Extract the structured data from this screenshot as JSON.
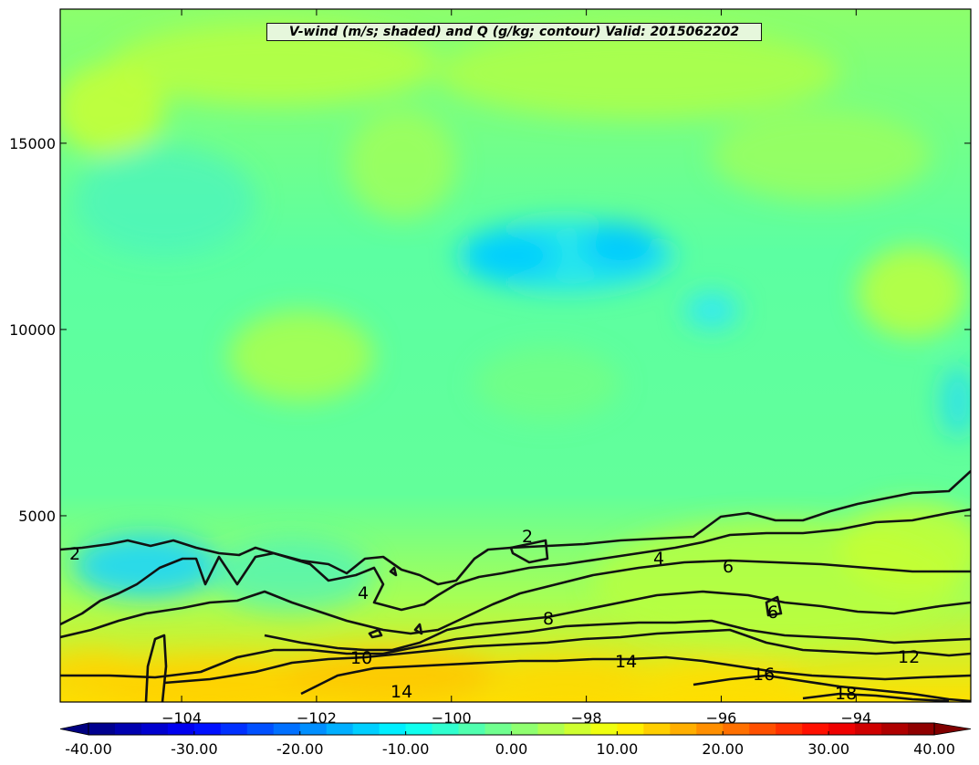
{
  "chart_data": {
    "type": "heatmap",
    "title": "V-wind (m/s; shaded) and Q (g/kg; contour) Valid: 2015062202",
    "xlabel": "",
    "ylabel": "",
    "xlim": [
      -105.8,
      -92.3
    ],
    "ylim": [
      0,
      18600
    ],
    "x_ticks": [
      -104,
      -102,
      -100,
      -98,
      -96,
      -94
    ],
    "x_tick_labels": [
      "−104",
      "−102",
      "−100",
      "−98",
      "−96",
      "−94"
    ],
    "y_ticks": [
      5000,
      10000,
      15000
    ],
    "y_tick_labels": [
      "5000",
      "10000",
      "15000"
    ],
    "colorbar": {
      "orientation": "horizontal",
      "extend": "both",
      "vmin": -40,
      "vmax": 40,
      "step": 2.5,
      "tick_values": [
        -40,
        -30,
        -20,
        -10,
        0,
        10,
        20,
        30,
        40
      ],
      "tick_labels": [
        "-40.00",
        "-30.00",
        "-20.00",
        "-10.00",
        "0.00",
        "10.00",
        "20.00",
        "30.00",
        "40.00"
      ]
    },
    "contour_label_values": [
      "2",
      "2",
      "4",
      "4",
      "6",
      "6",
      "8",
      "10",
      "12",
      "14",
      "14",
      "16",
      "18"
    ],
    "field_description_levels": {
      "upper_background": 3,
      "low_levels_near_surface": 12,
      "weak_negative_pocket": -5
    }
  }
}
